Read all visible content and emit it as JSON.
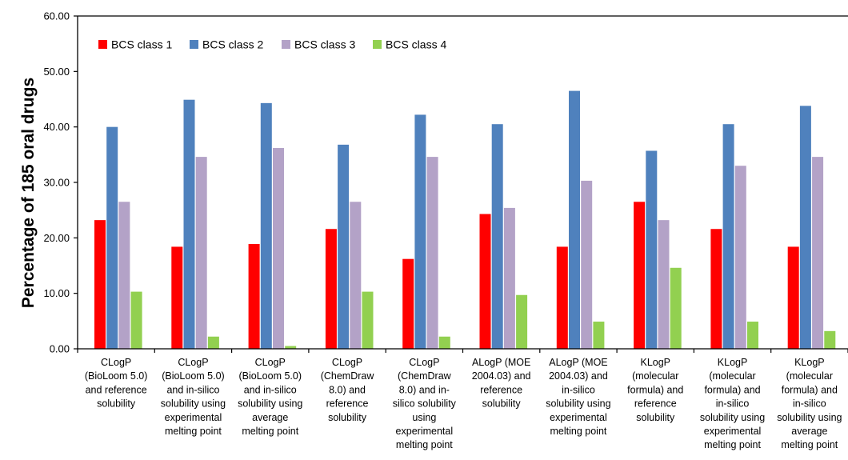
{
  "chart_data": {
    "type": "bar",
    "ylabel": "Percentage of 185 oral drugs",
    "ylim": [
      0,
      60
    ],
    "yticks": [
      "0.00",
      "10.00",
      "20.00",
      "30.00",
      "40.00",
      "50.00",
      "60.00"
    ],
    "legend_position": "top-left",
    "categories": [
      [
        "CLogP",
        "(BioLoom 5.0)",
        "and reference",
        "solubility"
      ],
      [
        "CLogP",
        "(BioLoom 5.0)",
        "and in-silico",
        "solubility using",
        "experimental",
        "melting point"
      ],
      [
        "CLogP",
        "(BioLoom 5.0)",
        "and in-silico",
        "solubility using",
        "average",
        "melting point"
      ],
      [
        "CLogP",
        "(ChemDraw",
        "8.0) and",
        "reference",
        "solubility"
      ],
      [
        "CLogP",
        "(ChemDraw",
        "8.0) and in-",
        "silico solubility",
        "using",
        "experimental",
        "melting point"
      ],
      [
        "ALogP (MOE",
        "2004.03) and",
        "reference",
        "solubility"
      ],
      [
        "ALogP (MOE",
        "2004.03) and",
        "in-silico",
        "solubility using",
        "experimental",
        "melting point"
      ],
      [
        "KLogP",
        "(molecular",
        "formula) and",
        "reference",
        "solubility"
      ],
      [
        "KLogP",
        "(molecular",
        "formula) and",
        "in-silico",
        "solubility using",
        "experimental",
        "melting point"
      ],
      [
        "KLogP",
        "(molecular",
        "formula) and",
        "in-silico",
        "solubility using",
        "average",
        "melting point"
      ]
    ],
    "series": [
      {
        "name": "BCS class 1",
        "color": "#ff0000",
        "values": [
          23.2,
          18.4,
          18.9,
          21.6,
          16.2,
          24.3,
          18.4,
          26.5,
          21.6,
          18.4
        ]
      },
      {
        "name": "BCS class 2",
        "color": "#4f81bd",
        "values": [
          40.0,
          44.9,
          44.3,
          36.8,
          42.2,
          40.5,
          46.5,
          35.7,
          40.5,
          43.8
        ]
      },
      {
        "name": "BCS class 3",
        "color": "#b3a2c7",
        "values": [
          26.5,
          34.6,
          36.2,
          26.5,
          34.6,
          25.4,
          30.3,
          23.2,
          33.0,
          34.6
        ]
      },
      {
        "name": "BCS class 4",
        "color": "#92d050",
        "values": [
          10.3,
          2.2,
          0.5,
          10.3,
          2.2,
          9.7,
          4.9,
          14.6,
          4.9,
          3.2
        ]
      }
    ]
  }
}
